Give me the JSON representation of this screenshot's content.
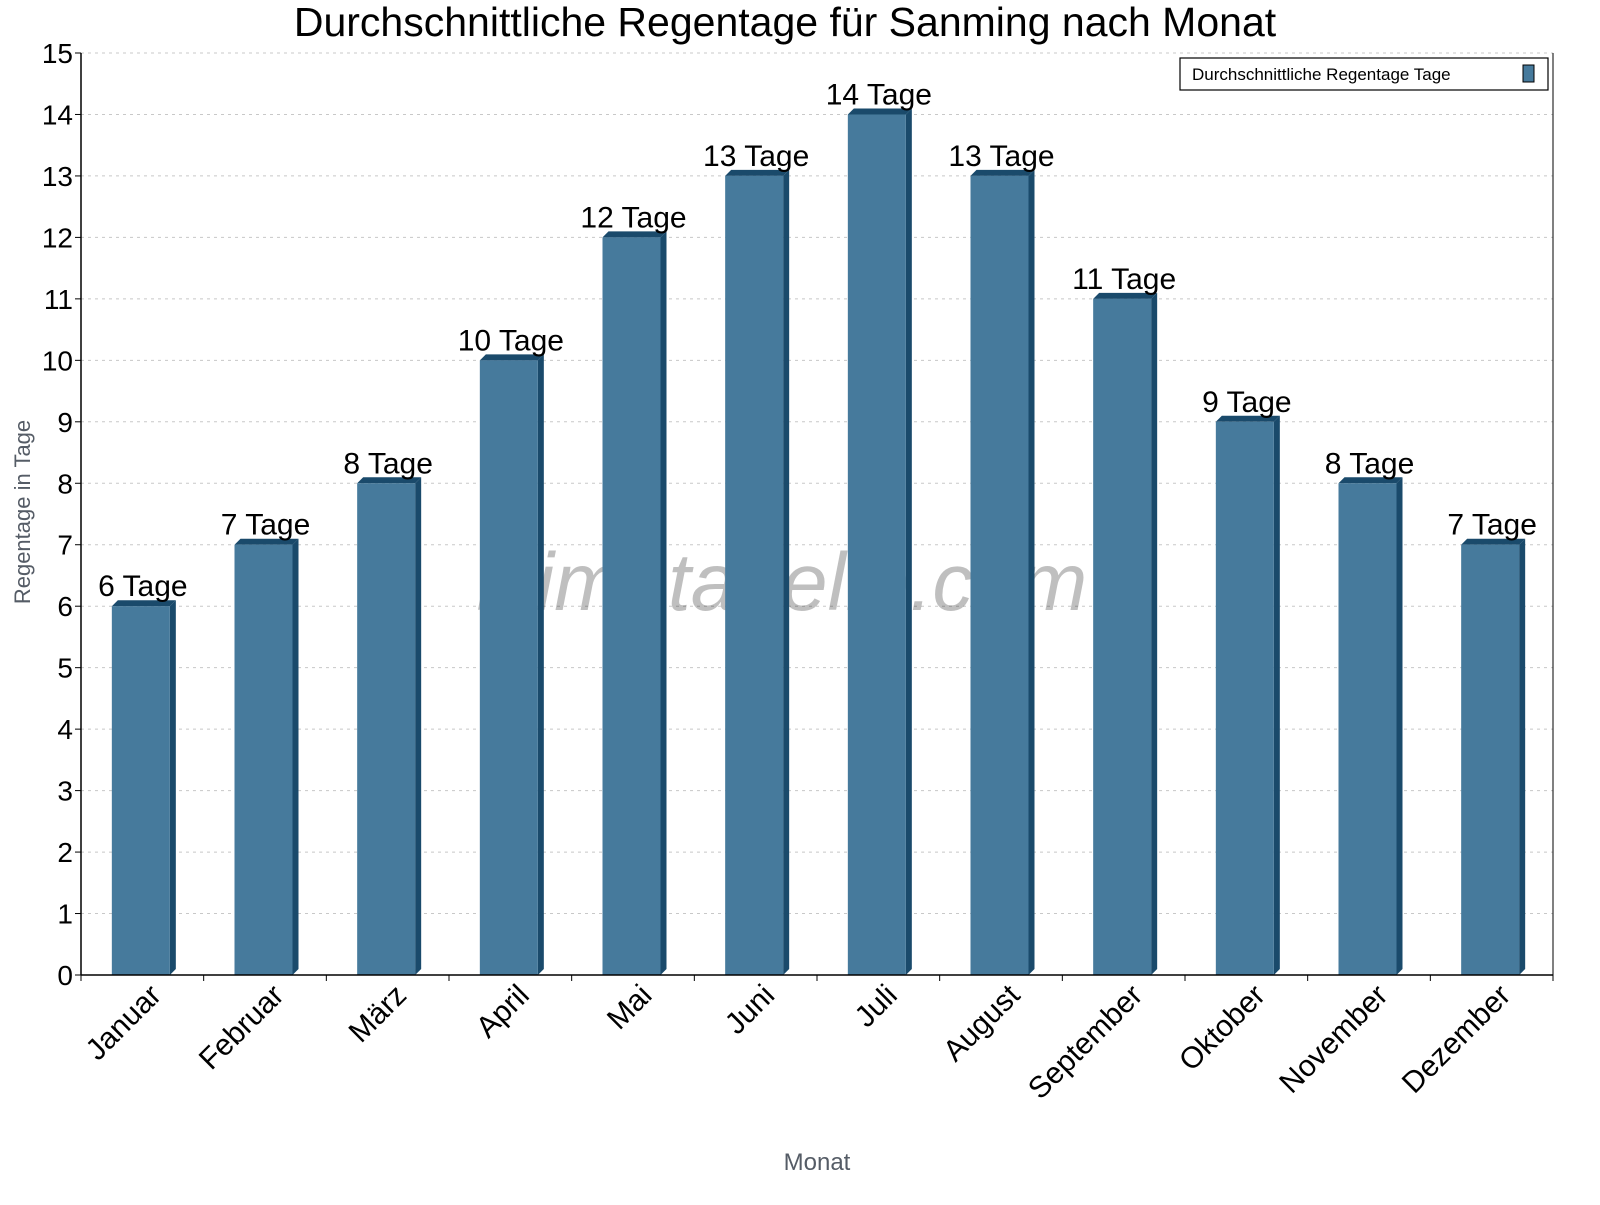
{
  "chart_data": {
    "type": "bar",
    "title": "Durchschnittliche Regentage für Sanming nach Monat",
    "xlabel": "Monat",
    "ylabel": "Regentage in Tage",
    "categories": [
      "Januar",
      "Februar",
      "März",
      "April",
      "Mai",
      "Juni",
      "Juli",
      "August",
      "September",
      "Oktober",
      "November",
      "Dezember"
    ],
    "series": [
      {
        "name": "Durchschnittliche Regentage Tage",
        "values": [
          6,
          7,
          8,
          10,
          12,
          13,
          14,
          13,
          11,
          9,
          8,
          7
        ],
        "color": "#467a9c",
        "shade_color": "#1a4a6b"
      }
    ],
    "data_labels": [
      "6 Tage",
      "7 Tage",
      "8 Tage",
      "10 Tage",
      "12 Tage",
      "13 Tage",
      "14 Tage",
      "13 Tage",
      "11 Tage",
      "9 Tage",
      "8 Tage",
      "7 Tage"
    ],
    "ylim": [
      0,
      15
    ],
    "yticks": [
      0,
      1,
      2,
      3,
      4,
      5,
      6,
      7,
      8,
      9,
      10,
      11,
      12,
      13,
      14,
      15
    ],
    "grid": true,
    "legend_position": "top-right",
    "watermark": "klimatabelle.com"
  }
}
